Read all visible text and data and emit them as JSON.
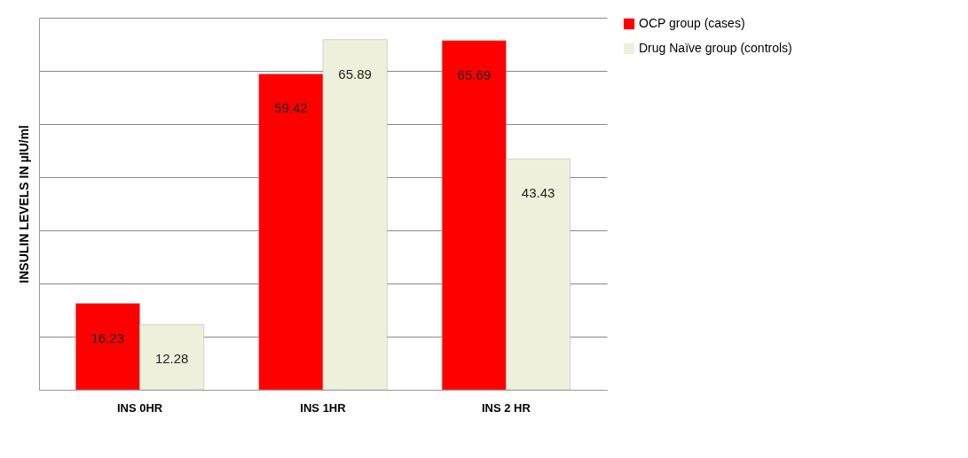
{
  "chart_data": {
    "type": "bar",
    "ylabel": "INSULIN LEVELS IN µIU/ml",
    "categories": [
      "INS 0HR",
      "INS 1HR",
      "INS 2 HR"
    ],
    "series": [
      {
        "name": "OCP group (cases)",
        "color": "#ff0000",
        "values": [
          16.23,
          59.42,
          65.69
        ]
      },
      {
        "name": "Drug Naïve group (controls)",
        "color": "#eef0dc",
        "values": [
          12.28,
          65.89,
          43.43
        ]
      }
    ],
    "ylim": [
      0,
      70
    ],
    "yticks": [
      {
        "value": 0,
        "label": null
      },
      {
        "value": 10,
        "label": null
      },
      {
        "value": 20,
        "label": null
      },
      {
        "value": 30,
        "label": null
      },
      {
        "value": 40,
        "label": null
      },
      {
        "value": 50,
        "label": null
      },
      {
        "value": 60,
        "label": null
      },
      {
        "value": 70,
        "label": null
      }
    ],
    "tick_labels": "x",
    "grid": "y",
    "legend": "right",
    "data_labels": true
  }
}
